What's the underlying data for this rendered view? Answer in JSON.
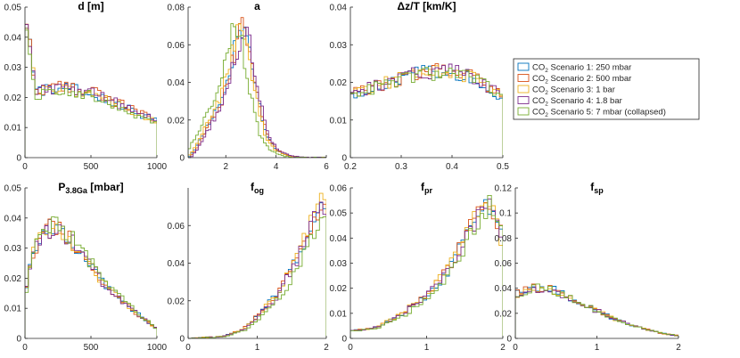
{
  "series_styles": [
    {
      "color": "#0072BD"
    },
    {
      "color": "#D95319"
    },
    {
      "color": "#EDB120"
    },
    {
      "color": "#7E2F8E"
    },
    {
      "color": "#77AC30"
    }
  ],
  "legend": {
    "position": "right-of-top-row",
    "entries": [
      {
        "prefix": "CO",
        "sub": "2",
        "suffix": " Scenario 1: 250 mbar"
      },
      {
        "prefix": "CO",
        "sub": "2",
        "suffix": " Scenario 2: 500 mbar"
      },
      {
        "prefix": "CO",
        "sub": "2",
        "suffix": " Scenario 3: 1 bar"
      },
      {
        "prefix": "CO",
        "sub": "2",
        "suffix": " Scenario 4: 1.8 bar"
      },
      {
        "prefix": "CO",
        "sub": "2",
        "suffix": " Scenario 5: 7 mbar (collapsed)"
      }
    ]
  },
  "chart_data": [
    {
      "type": "histogram",
      "title": {
        "main": "d [m]",
        "sub": ""
      },
      "xlim": [
        0,
        1000
      ],
      "ylim": [
        0,
        0.05
      ],
      "xticks": [
        0,
        500,
        1000
      ],
      "xtick_labels": [
        "0",
        "500",
        "1000"
      ],
      "yticks": [
        0,
        0.01,
        0.02,
        0.03,
        0.04,
        0.05
      ],
      "ytick_labels": [
        "0",
        "0.01",
        "0.02",
        "0.03",
        "0.04",
        "0.05"
      ],
      "shape": {
        "kind": "pts",
        "pts": [
          [
            0,
            0.044
          ],
          [
            40,
            0.037
          ],
          [
            80,
            0.022
          ],
          [
            250,
            0.023
          ],
          [
            500,
            0.022
          ],
          [
            700,
            0.018
          ],
          [
            900,
            0.014
          ],
          [
            1000,
            0.012
          ]
        ]
      },
      "bins": 40,
      "series_params": [
        {
          "scale": 1.0,
          "shift": 0
        },
        {
          "scale": 1.02,
          "shift": 0
        },
        {
          "scale": 0.98,
          "shift": 0
        },
        {
          "scale": 1.0,
          "shift": 0
        },
        {
          "scale": 0.95,
          "shift": 0
        }
      ]
    },
    {
      "type": "histogram",
      "title": {
        "main": "a",
        "sub": ""
      },
      "xlim": [
        0.5,
        6
      ],
      "ylim": [
        0,
        0.08
      ],
      "xticks": [
        2,
        4,
        6
      ],
      "xtick_labels": [
        "2",
        "4",
        "6"
      ],
      "yticks": [
        0,
        0.02,
        0.04,
        0.06,
        0.08
      ],
      "ytick_labels": [
        "0",
        "0.02",
        "0.04",
        "0.06",
        "0.08"
      ],
      "shape": {
        "kind": "pts",
        "pts": [
          [
            0.5,
            0.0
          ],
          [
            0.8,
            0.005
          ],
          [
            1.2,
            0.015
          ],
          [
            1.8,
            0.03
          ],
          [
            2.3,
            0.055
          ],
          [
            2.6,
            0.071
          ],
          [
            2.9,
            0.06
          ],
          [
            3.2,
            0.035
          ],
          [
            3.6,
            0.012
          ],
          [
            4.0,
            0.004
          ],
          [
            4.5,
            0.001
          ],
          [
            5,
            0.0
          ],
          [
            6,
            0
          ]
        ]
      },
      "bins": 55,
      "series_params": [
        {
          "scale": 1.0,
          "shift": 0
        },
        {
          "scale": 1.0,
          "shift": 0.05
        },
        {
          "scale": 1.0,
          "shift": -0.05
        },
        {
          "scale": 0.98,
          "shift": 0.1
        },
        {
          "scale": 1.0,
          "shift": -0.25
        }
      ]
    },
    {
      "type": "histogram",
      "title": {
        "main": "Δz/T [km/K]",
        "sub": ""
      },
      "xlim": [
        0.2,
        0.5
      ],
      "ylim": [
        0,
        0.04
      ],
      "xticks": [
        0.2,
        0.3,
        0.4,
        0.5
      ],
      "xtick_labels": [
        "0.2",
        "0.3",
        "0.4",
        "0.5"
      ],
      "yticks": [
        0,
        0.01,
        0.02,
        0.03,
        0.04
      ],
      "ytick_labels": [
        "0",
        "0.01",
        "0.02",
        "0.03",
        "0.04"
      ],
      "shape": {
        "kind": "pts",
        "pts": [
          [
            0.2,
            0.017
          ],
          [
            0.25,
            0.019
          ],
          [
            0.3,
            0.021
          ],
          [
            0.35,
            0.023
          ],
          [
            0.4,
            0.023
          ],
          [
            0.45,
            0.021
          ],
          [
            0.5,
            0.016
          ]
        ]
      },
      "bins": 45,
      "series_params": [
        {
          "scale": 1.0,
          "shift": 0
        },
        {
          "scale": 1.0,
          "shift": 0
        },
        {
          "scale": 1.0,
          "shift": 0
        },
        {
          "scale": 1.0,
          "shift": 0
        },
        {
          "scale": 0.98,
          "shift": 0
        }
      ]
    },
    {
      "type": "histogram",
      "title": {
        "main": "P",
        "sub": "3.8Ga",
        "rest": " [mbar]"
      },
      "xlim": [
        0,
        1000
      ],
      "ylim": [
        0,
        0.05
      ],
      "xticks": [
        0,
        500,
        1000
      ],
      "xtick_labels": [
        "0",
        "500",
        "1000"
      ],
      "yticks": [
        0,
        0.01,
        0.02,
        0.03,
        0.04,
        0.05
      ],
      "ytick_labels": [
        "0",
        "0.01",
        "0.02",
        "0.03",
        "0.04",
        "0.05"
      ],
      "shape": {
        "kind": "pts",
        "pts": [
          [
            0,
            0.012
          ],
          [
            50,
            0.028
          ],
          [
            150,
            0.036
          ],
          [
            250,
            0.037
          ],
          [
            400,
            0.03
          ],
          [
            600,
            0.018
          ],
          [
            800,
            0.01
          ],
          [
            1000,
            0.003
          ]
        ]
      },
      "bins": 40,
      "series_params": [
        {
          "scale": 1.0,
          "shift": 0
        },
        {
          "scale": 1.0,
          "shift": 0
        },
        {
          "scale": 1.0,
          "shift": 0
        },
        {
          "scale": 1.0,
          "shift": 0
        },
        {
          "scale": 1.05,
          "shift": 0
        }
      ]
    },
    {
      "type": "histogram",
      "title": {
        "main": "f",
        "sub": "og"
      },
      "xlim": [
        0,
        2
      ],
      "ylim": [
        0,
        0.08
      ],
      "xticks": [
        0,
        1,
        2
      ],
      "xtick_labels": [
        "0",
        "1",
        "2"
      ],
      "yticks": [
        0,
        0.02,
        0.04,
        0.06
      ],
      "ytick_labels": [
        "0",
        "0.02",
        "0.04",
        "0.06"
      ],
      "shape": {
        "kind": "pts",
        "pts": [
          [
            0,
            0.0
          ],
          [
            0.5,
            0.001
          ],
          [
            0.8,
            0.005
          ],
          [
            1.0,
            0.012
          ],
          [
            1.3,
            0.024
          ],
          [
            1.6,
            0.045
          ],
          [
            1.85,
            0.068
          ],
          [
            1.95,
            0.072
          ],
          [
            2.0,
            0.066
          ]
        ]
      },
      "bins": 40,
      "series_params": [
        {
          "scale": 1.0,
          "shift": 0
        },
        {
          "scale": 1.0,
          "shift": 0
        },
        {
          "scale": 1.0,
          "shift": 0
        },
        {
          "scale": 1.0,
          "shift": 0.02
        },
        {
          "scale": 0.95,
          "shift": 0.05
        }
      ]
    },
    {
      "type": "histogram",
      "title": {
        "main": "f",
        "sub": "pr"
      },
      "xlim": [
        0,
        2
      ],
      "ylim": [
        0,
        0.06
      ],
      "xticks": [
        0,
        1,
        2
      ],
      "xtick_labels": [
        "0",
        "1",
        "2"
      ],
      "yticks": [
        0,
        0.01,
        0.02,
        0.03,
        0.04,
        0.05,
        0.06
      ],
      "ytick_labels": [
        "0",
        "0.01",
        "0.02",
        "0.03",
        "0.04",
        "0.05",
        "0.06"
      ],
      "shape": {
        "kind": "pts",
        "pts": [
          [
            0,
            0.003
          ],
          [
            0.3,
            0.004
          ],
          [
            0.6,
            0.008
          ],
          [
            1.0,
            0.017
          ],
          [
            1.3,
            0.028
          ],
          [
            1.6,
            0.045
          ],
          [
            1.8,
            0.055
          ],
          [
            1.9,
            0.05
          ],
          [
            2.0,
            0.04
          ]
        ]
      },
      "bins": 40,
      "series_params": [
        {
          "scale": 1.0,
          "shift": 0
        },
        {
          "scale": 1.0,
          "shift": 0
        },
        {
          "scale": 1.0,
          "shift": -0.02
        },
        {
          "scale": 1.0,
          "shift": 0
        },
        {
          "scale": 0.98,
          "shift": 0.04
        }
      ]
    },
    {
      "type": "histogram",
      "title": {
        "main": "f",
        "sub": "sp"
      },
      "xlim": [
        0,
        2
      ],
      "ylim": [
        0,
        0.12
      ],
      "xticks": [
        0,
        1,
        2
      ],
      "xtick_labels": [
        "0",
        "1",
        "2"
      ],
      "yticks": [
        0,
        0.02,
        0.04,
        0.06,
        0.08,
        0.1,
        0.12
      ],
      "ytick_labels": [
        "0",
        "0.02",
        "0.04",
        "0.06",
        "0.08",
        "0.1",
        "0.12"
      ],
      "shape": {
        "kind": "pts",
        "pts": [
          [
            0,
            0.035
          ],
          [
            0.2,
            0.04
          ],
          [
            0.4,
            0.04
          ],
          [
            0.6,
            0.035
          ],
          [
            0.9,
            0.025
          ],
          [
            1.2,
            0.016
          ],
          [
            1.5,
            0.009
          ],
          [
            1.8,
            0.004
          ],
          [
            2.0,
            0.002
          ]
        ]
      },
      "bins": 40,
      "series_params": [
        {
          "scale": 1.0,
          "shift": 0
        },
        {
          "scale": 1.0,
          "shift": 0
        },
        {
          "scale": 1.0,
          "shift": 0
        },
        {
          "scale": 1.0,
          "shift": 0
        },
        {
          "scale": 1.0,
          "shift": 0
        }
      ]
    }
  ]
}
